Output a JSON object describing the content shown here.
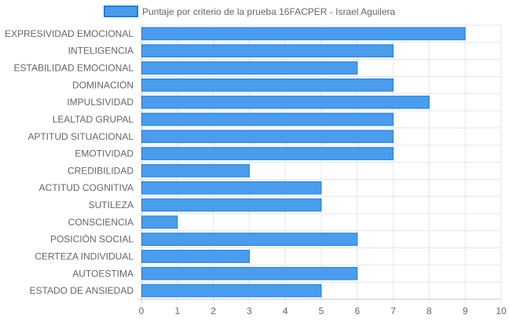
{
  "chart_data": {
    "type": "bar",
    "orientation": "horizontal",
    "categories": [
      "EXPRESIVIDAD EMOCIONAL",
      "INTELIGENCIA",
      "ESTABILIDAD EMOCIONAL",
      "DOMINACIÓN",
      "IMPULSIVIDAD",
      "LEALTAD GRUPAL",
      "APTITUD SITUACIONAL",
      "EMOTIVIDAD",
      "CREDIBILIDAD",
      "ACTITUD COGNITIVA",
      "SUTILEZA",
      "CONSCIENCIA",
      "POSICIÓN SOCIAL",
      "CERTEZA INDIVIDUAL",
      "AUTOESTIMA",
      "ESTADO DE ANSIEDAD"
    ],
    "series": [
      {
        "name": "Puntaje por criterio de la prueba 16FACPER - Israel Aguilera",
        "values": [
          9,
          7,
          6,
          7,
          8,
          7,
          7,
          7,
          3,
          5,
          5,
          1,
          6,
          3,
          6,
          5
        ]
      }
    ],
    "xlim": [
      0,
      10
    ],
    "x_ticks": [
      "0",
      "1",
      "2",
      "3",
      "4",
      "5",
      "6",
      "7",
      "8",
      "9",
      "10"
    ],
    "grid": true,
    "legend_position": "top",
    "colors": {
      "bar_fill": "#4a9cec",
      "bar_border": "#1f7fe0",
      "grid": "#e5e5e5",
      "axis": "#c8c8c8",
      "text": "#666666"
    }
  }
}
